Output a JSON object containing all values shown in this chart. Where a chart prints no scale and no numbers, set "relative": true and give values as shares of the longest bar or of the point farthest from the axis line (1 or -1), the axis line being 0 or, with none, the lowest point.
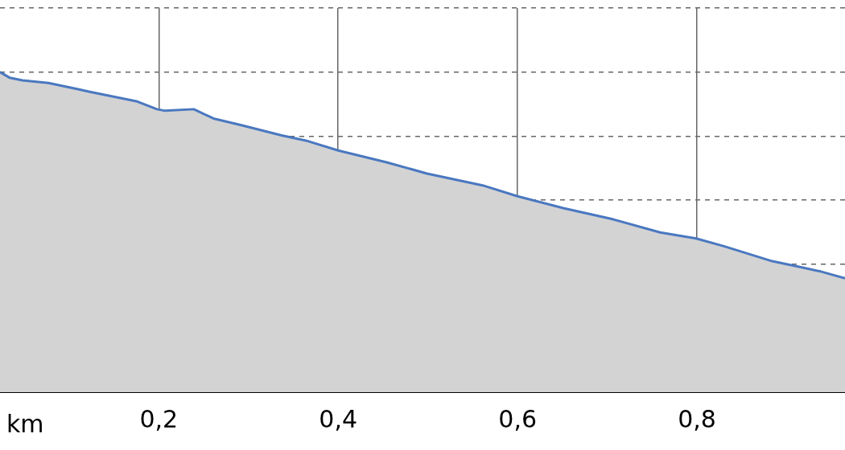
{
  "chart_data": {
    "type": "area",
    "xlabel": "km",
    "relative": true,
    "grid": true,
    "line_style": "solid",
    "marker": "none",
    "xlim": [
      0.023,
      0.965
    ],
    "xticks": [
      {
        "value": 0.2,
        "label": "0,2"
      },
      {
        "value": 0.4,
        "label": "0,4"
      },
      {
        "value": 0.6,
        "label": "0,6"
      },
      {
        "value": 0.8,
        "label": "0,8"
      }
    ],
    "x": [
      0.023,
      0.034,
      0.048,
      0.077,
      0.109,
      0.122,
      0.176,
      0.198,
      0.207,
      0.239,
      0.261,
      0.292,
      0.337,
      0.364,
      0.4,
      0.454,
      0.499,
      0.561,
      0.6,
      0.651,
      0.705,
      0.759,
      0.799,
      0.83,
      0.884,
      0.92,
      0.938,
      0.965
    ],
    "series": [
      {
        "color": "#4a78c0",
        "values": [
          1,
          0.982,
          0.974,
          0.966,
          0.947,
          0.939,
          0.908,
          0.884,
          0.879,
          0.884,
          0.855,
          0.834,
          0.802,
          0.786,
          0.755,
          0.718,
          0.683,
          0.646,
          0.612,
          0.575,
          0.541,
          0.499,
          0.48,
          0.456,
          0.409,
          0.388,
          0.377,
          0.356
        ]
      }
    ]
  }
}
